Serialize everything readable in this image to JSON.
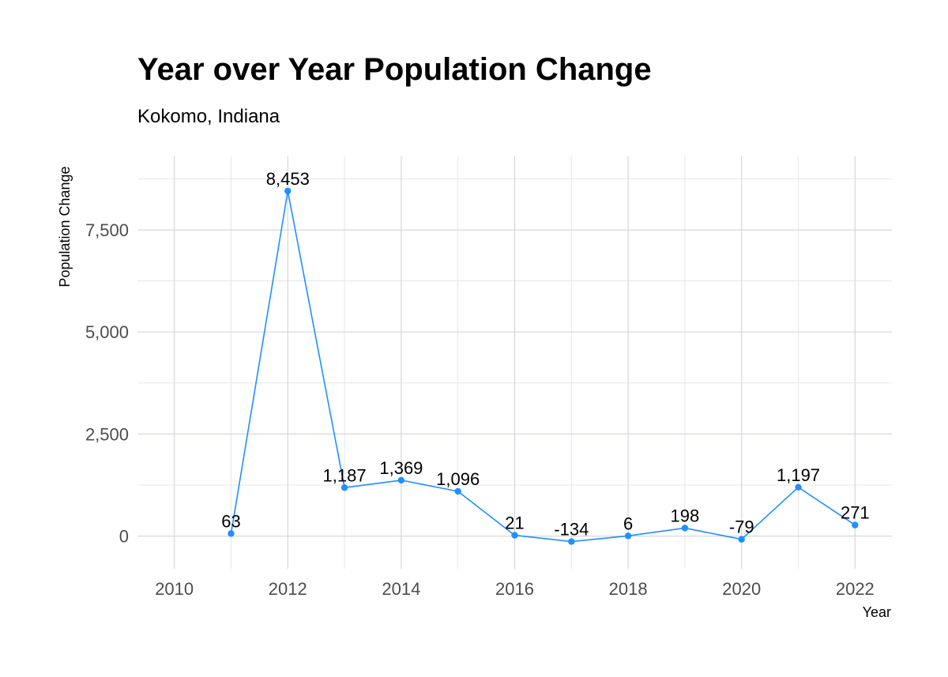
{
  "chart_data": {
    "type": "line",
    "title": "Year over Year Population Change",
    "subtitle": "Kokomo, Indiana",
    "xlabel": "Year",
    "ylabel": "Population Change",
    "x": [
      2011,
      2012,
      2013,
      2014,
      2015,
      2016,
      2017,
      2018,
      2019,
      2020,
      2021,
      2022
    ],
    "y": [
      63,
      8453,
      1187,
      1369,
      1096,
      21,
      -134,
      6,
      198,
      -79,
      1197,
      271
    ],
    "data_labels": [
      "63",
      "8,453",
      "1,187",
      "1,369",
      "1,096",
      "21",
      "-134",
      "6",
      "198",
      "-79",
      "1,197",
      "271"
    ],
    "xlim": [
      2009.35,
      2022.65
    ],
    "ylim": [
      -800,
      9300
    ],
    "x_ticks": [
      2010,
      2012,
      2014,
      2016,
      2018,
      2020,
      2022
    ],
    "x_tick_labels": [
      "2010",
      "2012",
      "2014",
      "2016",
      "2018",
      "2020",
      "2022"
    ],
    "y_ticks": [
      0,
      2500,
      5000,
      7500
    ],
    "y_tick_labels": [
      "0",
      "2,500",
      "5,000",
      "7,500"
    ],
    "grid": true,
    "legend": "none",
    "line_color": "#1E90FF"
  }
}
